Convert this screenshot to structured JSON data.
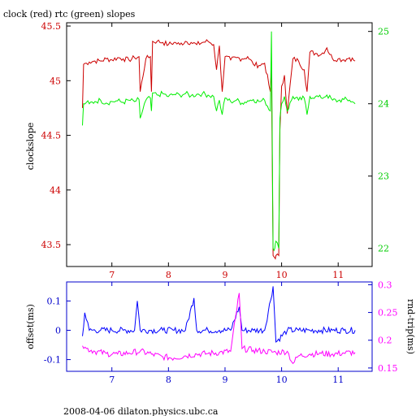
{
  "title": "clock (red) rtc (green) slopes",
  "footer": "2008-04-06 dilaton.physics.ubc.ca",
  "colors": {
    "red": "#cc0000",
    "green": "#00ee00",
    "blue": "#0000ff",
    "magenta": "#ff00ff",
    "frame_top": "#000000",
    "frame_bottom": "#0000cc"
  },
  "chart_data": [
    {
      "type": "line",
      "title": "clock (red) rtc (green) slopes",
      "ylabel": "clockslope",
      "xlim": [
        6.2,
        11.6
      ],
      "xticks": [
        "7",
        "8",
        "9",
        "10",
        "11"
      ],
      "ylim_left": [
        43.3,
        45.53
      ],
      "yticks_left": [
        "43.5",
        "44",
        "44.5",
        "45",
        "45.5"
      ],
      "ylim_right": [
        21.75,
        25.12
      ],
      "yticks_right": [
        "22",
        "23",
        "24",
        "25"
      ],
      "series": [
        {
          "axis": "left",
          "color": "#cc0000",
          "name": "clock",
          "x": [
            6.48,
            6.5,
            6.55,
            6.6,
            6.7,
            6.8,
            6.9,
            7.0,
            7.1,
            7.2,
            7.3,
            7.4,
            7.48,
            7.5,
            7.6,
            7.68,
            7.7,
            7.72,
            7.8,
            7.9,
            8.0,
            8.1,
            8.2,
            8.3,
            8.4,
            8.5,
            8.6,
            8.7,
            8.8,
            8.85,
            8.9,
            8.95,
            9.0,
            9.1,
            9.2,
            9.3,
            9.4,
            9.5,
            9.6,
            9.7,
            9.8,
            9.82,
            9.85,
            9.88,
            9.9,
            9.95,
            9.97,
            10.0,
            10.05,
            10.1,
            10.2,
            10.3,
            10.4,
            10.45,
            10.5,
            10.6,
            10.7,
            10.8,
            10.9,
            11.0,
            11.1,
            11.2,
            11.3
          ],
          "y": [
            44.75,
            45.15,
            45.16,
            45.17,
            45.18,
            45.18,
            45.2,
            45.19,
            45.21,
            45.2,
            45.19,
            45.21,
            45.22,
            44.9,
            45.2,
            45.22,
            44.9,
            45.36,
            45.36,
            45.35,
            45.33,
            45.35,
            45.33,
            45.36,
            45.35,
            45.33,
            45.35,
            45.36,
            45.33,
            45.1,
            45.32,
            44.9,
            45.22,
            45.19,
            45.21,
            45.2,
            45.22,
            45.15,
            45.14,
            45.16,
            44.9,
            45.1,
            43.4,
            43.38,
            43.4,
            43.4,
            44.55,
            44.95,
            45.05,
            44.7,
            45.2,
            45.18,
            45.1,
            44.9,
            45.26,
            45.25,
            45.24,
            45.3,
            45.2,
            45.2,
            45.19,
            45.21,
            45.18
          ]
        },
        {
          "axis": "right",
          "color": "#00ee00",
          "name": "rtc",
          "x": [
            6.48,
            6.5,
            6.55,
            6.6,
            6.7,
            6.8,
            6.9,
            7.0,
            7.1,
            7.2,
            7.3,
            7.4,
            7.48,
            7.5,
            7.6,
            7.68,
            7.7,
            7.72,
            7.8,
            7.9,
            8.0,
            8.1,
            8.2,
            8.3,
            8.4,
            8.5,
            8.6,
            8.7,
            8.8,
            8.85,
            8.9,
            8.95,
            9.0,
            9.1,
            9.2,
            9.3,
            9.4,
            9.5,
            9.6,
            9.7,
            9.8,
            9.82,
            9.85,
            9.88,
            9.9,
            9.95,
            9.97,
            10.0,
            10.05,
            10.1,
            10.2,
            10.3,
            10.4,
            10.45,
            10.5,
            10.6,
            10.7,
            10.8,
            10.9,
            11.0,
            11.1,
            11.2,
            11.3
          ],
          "y": [
            23.7,
            24.0,
            24.02,
            24.0,
            24.03,
            24.05,
            24.01,
            24.03,
            24.04,
            24.02,
            24.05,
            24.03,
            24.06,
            23.8,
            24.05,
            24.08,
            23.9,
            24.15,
            24.12,
            24.14,
            24.1,
            24.13,
            24.12,
            24.14,
            24.11,
            24.13,
            24.14,
            24.12,
            24.1,
            23.9,
            24.05,
            23.85,
            24.08,
            24.03,
            24.05,
            24.01,
            24.04,
            24.06,
            24.03,
            24.05,
            23.9,
            25.0,
            22.0,
            22.0,
            22.1,
            22.0,
            23.8,
            24.0,
            24.1,
            23.9,
            24.1,
            24.05,
            24.08,
            23.85,
            24.1,
            24.1,
            24.08,
            24.12,
            24.05,
            24.04,
            24.06,
            24.05,
            24.0
          ]
        }
      ]
    },
    {
      "type": "line",
      "ylabel_left": "offset(ms)",
      "ylabel_right": "rnd-trip(ms)",
      "xlim": [
        6.2,
        11.6
      ],
      "xticks": [
        "7",
        "8",
        "9",
        "10",
        "11"
      ],
      "ylim_left": [
        -0.14,
        0.165
      ],
      "yticks_left": [
        "-0.1",
        "0",
        "0.1"
      ],
      "ylim_right": [
        0.144,
        0.305
      ],
      "yticks_right": [
        "0.15",
        "0.2",
        "0.25",
        "0.3"
      ],
      "series": [
        {
          "axis": "left",
          "color": "#0000ff",
          "name": "offset",
          "x": [
            6.48,
            6.52,
            6.6,
            6.8,
            7.0,
            7.2,
            7.4,
            7.45,
            7.5,
            7.7,
            7.9,
            8.1,
            8.3,
            8.45,
            8.5,
            8.7,
            8.9,
            9.1,
            9.25,
            9.3,
            9.5,
            9.7,
            9.85,
            9.9,
            10.1,
            10.3,
            10.5,
            10.7,
            10.9,
            11.1,
            11.3
          ],
          "y": [
            -0.02,
            0.06,
            0.0,
            0.0,
            0.0,
            0.0,
            0.0,
            0.1,
            0.0,
            0.0,
            0.0,
            0.0,
            0.0,
            0.11,
            0.0,
            0.0,
            0.0,
            0.0,
            0.08,
            0.0,
            0.0,
            0.0,
            0.15,
            -0.04,
            0.0,
            0.0,
            0.0,
            0.0,
            0.0,
            0.0,
            0.0
          ]
        },
        {
          "axis": "right",
          "color": "#ff00ff",
          "name": "rnd-trip",
          "x": [
            6.48,
            6.55,
            6.7,
            6.9,
            7.1,
            7.3,
            7.5,
            7.7,
            7.9,
            8.1,
            8.3,
            8.5,
            8.7,
            8.9,
            9.1,
            9.25,
            9.3,
            9.5,
            9.7,
            9.9,
            10.1,
            10.2,
            10.3,
            10.5,
            10.7,
            10.9,
            11.1,
            11.3
          ],
          "y": [
            0.19,
            0.185,
            0.18,
            0.176,
            0.175,
            0.177,
            0.18,
            0.175,
            0.17,
            0.168,
            0.172,
            0.175,
            0.176,
            0.178,
            0.18,
            0.285,
            0.185,
            0.182,
            0.18,
            0.178,
            0.18,
            0.158,
            0.172,
            0.175,
            0.176,
            0.175,
            0.177,
            0.178
          ]
        }
      ]
    }
  ]
}
